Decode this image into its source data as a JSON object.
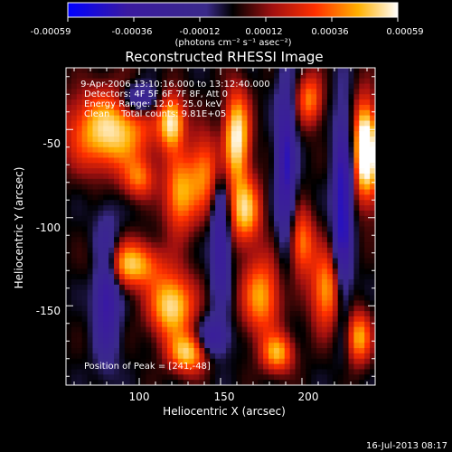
{
  "colorbar": {
    "ticks": [
      "-0.00059",
      "-0.00036",
      "-0.00012",
      "0.00012",
      "0.00036",
      "0.00059"
    ],
    "units_label": "(photons cm⁻² s⁻¹ asec⁻²)",
    "min": -0.00059,
    "max": 0.00059,
    "colors": [
      "#0000ff",
      "#3a1aa0",
      "#3a2a8a",
      "#000000",
      "#a01010",
      "#ff3000",
      "#ffb000",
      "#ffffff"
    ]
  },
  "chart_data": {
    "type": "heatmap",
    "title": "Reconstructed RHESSI Image",
    "xlabel": "Heliocentric X (arcsec)",
    "ylabel": "Heliocentric Y (arcsec)",
    "xlim": [
      55,
      245
    ],
    "ylim": [
      -195,
      -15
    ],
    "xticks": [
      100,
      150,
      200
    ],
    "yticks": [
      -50,
      -100,
      -150
    ],
    "info_lines": [
      " 9-Apr-2006 13:10:16.000 to 13:12:40.000",
      "Detectors: 4F 5F 6F 7F 8F, Att 0",
      "Energy Range: 12.0 - 25.0 keV",
      "Clean    Total counts: 9.81E+05"
    ],
    "peak_label": "Position of Peak = [241,-48]",
    "peak_position": [
      241,
      -48
    ]
  },
  "footer": {
    "timestamp": "16-Jul-2013 08:17"
  }
}
